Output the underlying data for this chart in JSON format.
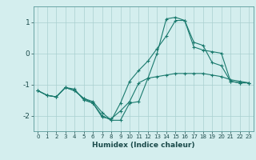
{
  "background_color": "#d4eeee",
  "grid_color": "#aad0d0",
  "line_color": "#1a7a6e",
  "xlabel": "Humidex (Indice chaleur)",
  "xlim": [
    -0.5,
    23.5
  ],
  "ylim": [
    -2.5,
    1.5
  ],
  "yticks": [
    1,
    0,
    -1,
    -2
  ],
  "xticks": [
    0,
    1,
    2,
    3,
    4,
    5,
    6,
    7,
    8,
    9,
    10,
    11,
    12,
    13,
    14,
    15,
    16,
    17,
    18,
    19,
    20,
    21,
    22,
    23
  ],
  "series": [
    {
      "x": [
        0,
        1,
        2,
        3,
        4,
        5,
        6,
        7,
        8,
        9,
        10,
        11,
        12,
        13,
        14,
        15,
        16,
        17,
        18,
        19,
        20,
        21,
        22,
        23
      ],
      "y": [
        -1.2,
        -1.35,
        -1.4,
        -1.1,
        -1.15,
        -1.5,
        -1.6,
        -2.05,
        -2.1,
        -1.85,
        -1.55,
        -0.95,
        -0.8,
        -0.75,
        -0.7,
        -0.65,
        -0.65,
        -0.65,
        -0.65,
        -0.7,
        -0.75,
        -0.85,
        -0.9,
        -0.95
      ]
    },
    {
      "x": [
        0,
        1,
        2,
        3,
        4,
        5,
        6,
        7,
        8,
        9,
        10,
        11,
        12,
        13,
        14,
        15,
        16,
        17,
        18,
        19,
        20,
        21,
        22,
        23
      ],
      "y": [
        -1.2,
        -1.35,
        -1.4,
        -1.1,
        -1.2,
        -1.45,
        -1.55,
        -1.9,
        -2.15,
        -1.6,
        -0.9,
        -0.55,
        -0.25,
        0.15,
        0.55,
        1.05,
        1.05,
        0.2,
        0.1,
        0.05,
        0.0,
        -0.9,
        -0.95,
        -0.95
      ]
    },
    {
      "x": [
        0,
        1,
        2,
        3,
        4,
        5,
        6,
        7,
        8,
        9,
        10,
        11,
        12,
        13,
        14,
        15,
        16,
        17,
        18,
        19,
        20,
        21,
        22,
        23
      ],
      "y": [
        -1.2,
        -1.35,
        -1.4,
        -1.1,
        -1.2,
        -1.45,
        -1.6,
        -2.0,
        -2.15,
        -2.15,
        -1.6,
        -1.55,
        -0.8,
        0.0,
        1.1,
        1.15,
        1.05,
        0.35,
        0.25,
        -0.3,
        -0.4,
        -0.9,
        -0.95,
        -0.95
      ]
    }
  ]
}
